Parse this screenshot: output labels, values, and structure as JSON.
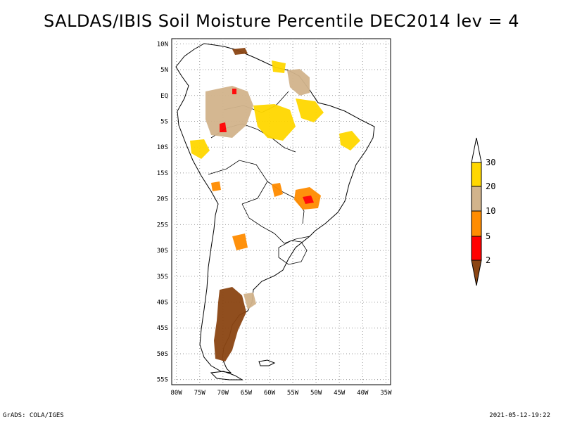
{
  "map": {
    "title": "SALDAS/IBIS Soil Moisture Percentile DEC2014 lev = 4",
    "lat_ticks": [
      "10N",
      "5N",
      "EQ",
      "5S",
      "10S",
      "15S",
      "20S",
      "25S",
      "30S",
      "35S",
      "40S",
      "45S",
      "50S",
      "55S"
    ],
    "lon_ticks": [
      "80W",
      "75W",
      "70W",
      "65W",
      "60W",
      "55W",
      "50W",
      "45W",
      "40W",
      "35W"
    ],
    "lat_values": [
      10,
      5,
      0,
      -5,
      -10,
      -15,
      -20,
      -25,
      -30,
      -35,
      -40,
      -45,
      -50,
      -55
    ],
    "lon_values": [
      -80,
      -75,
      -70,
      -65,
      -60,
      -55,
      -50,
      -45,
      -40,
      -35
    ],
    "extent": {
      "lon": [
        -81,
        -34
      ],
      "lat": [
        -56,
        11
      ]
    }
  },
  "legend": {
    "labels": [
      "30",
      "20",
      "10",
      "5",
      "2"
    ],
    "colors": {
      "c30": "#ffd700",
      "c20": "#d2b48c",
      "c10": "#ff8c00",
      "c5": "#ff0000",
      "c2": "#8b4513",
      "top": "#ffffff"
    }
  },
  "footer": {
    "left": "GrADS: COLA/IGES",
    "right": "2021-05-12-19:22"
  }
}
